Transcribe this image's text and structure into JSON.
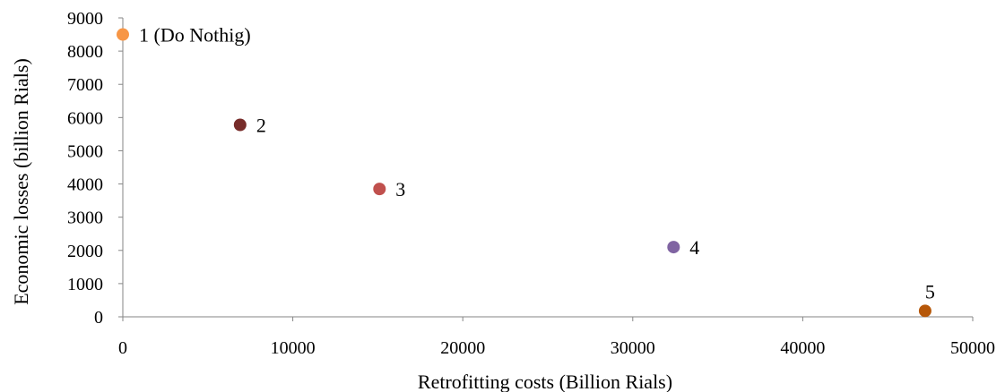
{
  "chart_data": {
    "type": "scatter",
    "title": "",
    "xlabel": "Retrofitting costs (Billion Rials)",
    "ylabel": "Economic losses (billion Rials)",
    "xlim": [
      0,
      50000
    ],
    "ylim": [
      0,
      9000
    ],
    "x_ticks": [
      0,
      10000,
      20000,
      30000,
      40000,
      50000
    ],
    "y_ticks": [
      0,
      1000,
      2000,
      3000,
      4000,
      5000,
      6000,
      7000,
      8000,
      9000
    ],
    "grid": false,
    "legend": "none",
    "points": [
      {
        "x": 0,
        "y": 8500,
        "label": "1 (Do Nothig)",
        "color": "#F79646"
      },
      {
        "x": 6900,
        "y": 5780,
        "label": "2",
        "color": "#772C2A"
      },
      {
        "x": 15100,
        "y": 3850,
        "label": "3",
        "color": "#C0504D"
      },
      {
        "x": 32400,
        "y": 2100,
        "label": "4",
        "color": "#8064A2"
      },
      {
        "x": 47200,
        "y": 180,
        "label": "5",
        "color": "#B65708"
      }
    ]
  }
}
